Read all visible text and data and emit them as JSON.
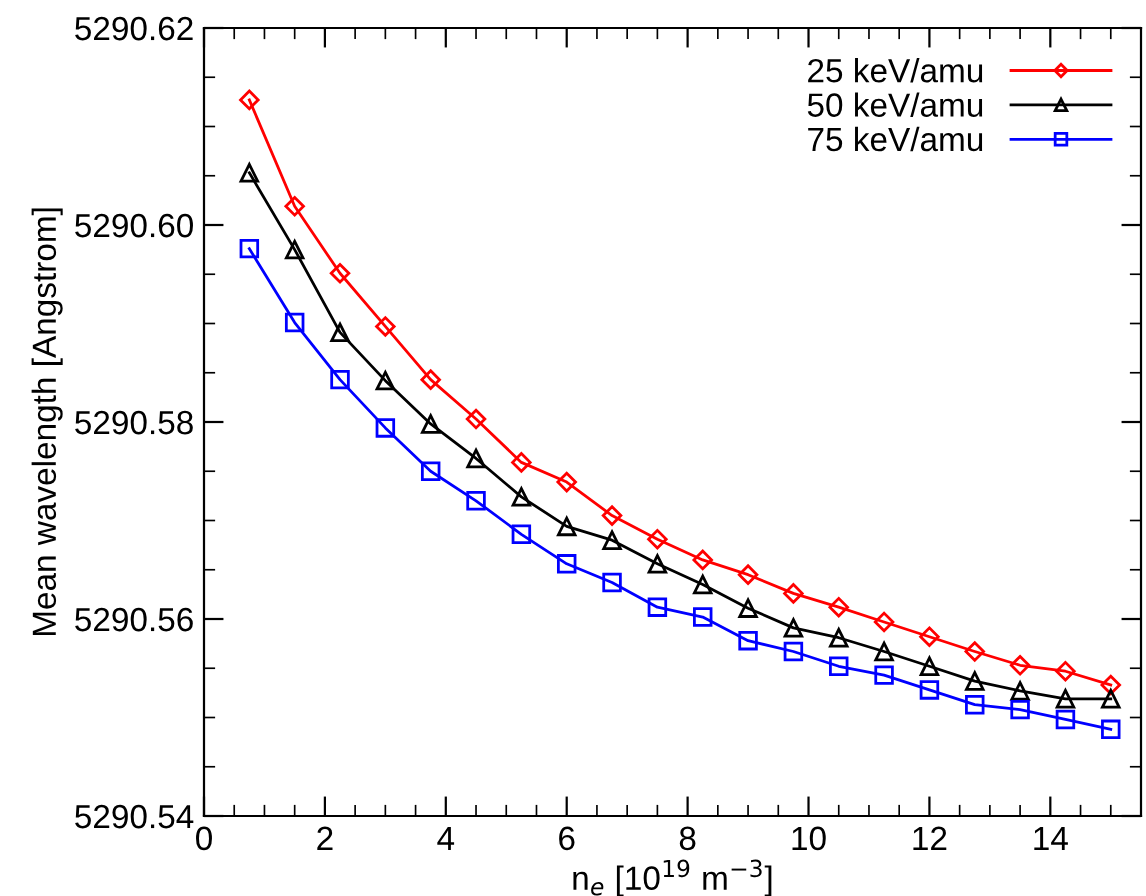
{
  "chart_data": {
    "type": "line",
    "xlabel": "n$_{e}$ [10$^{19}$ m$^{−3}$]",
    "ylabel": "Mean wavelength [Angstrom]",
    "x": [
      0.75,
      1.5,
      2.25,
      3,
      3.75,
      4.5,
      5.25,
      6,
      6.75,
      7.5,
      8.25,
      9,
      9.75,
      10.5,
      11.25,
      12,
      12.75,
      13.5,
      14.25,
      15
    ],
    "series": [
      {
        "name": "25 keV/amu",
        "color": "#ff0000",
        "marker": "diamond",
        "values": [
          5290.6127,
          5290.6019,
          5290.5951,
          5290.5897,
          5290.5843,
          5290.5803,
          5290.5759,
          5290.5739,
          5290.5705,
          5290.5681,
          5290.566,
          5290.5645,
          5290.5626,
          5290.5612,
          5290.5597,
          5290.5582,
          5290.5567,
          5290.5553,
          5290.5547,
          5290.5533
        ]
      },
      {
        "name": "50 keV/amu",
        "color": "#000000",
        "marker": "triangle",
        "values": [
          5290.6053,
          5290.5975,
          5290.5891,
          5290.5842,
          5290.5798,
          5290.5763,
          5290.5724,
          5290.5694,
          5290.568,
          5290.5656,
          5290.5635,
          5290.5611,
          5290.5591,
          5290.5581,
          5290.5567,
          5290.5552,
          5290.5537,
          5290.5527,
          5290.5519,
          5290.5519
        ]
      },
      {
        "name": "75 keV/amu",
        "color": "#0000ff",
        "marker": "square",
        "values": [
          5290.5976,
          5290.5901,
          5290.5843,
          5290.5794,
          5290.575,
          5290.572,
          5290.5686,
          5290.5656,
          5290.5637,
          5290.5612,
          5290.5602,
          5290.5578,
          5290.5567,
          5290.5552,
          5290.5543,
          5290.5528,
          5290.5513,
          5290.5508,
          5290.5498,
          5290.5488
        ]
      }
    ],
    "xlim": [
      0,
      15.5
    ],
    "xticks": [
      0,
      2,
      4,
      6,
      8,
      10,
      12,
      14
    ],
    "ylim": [
      5290.54,
      5290.62
    ],
    "yticks": [
      {
        "value": 5290.54,
        "label": "5290.54"
      },
      {
        "value": 5290.56,
        "label": "5290.56"
      },
      {
        "value": 5290.58,
        "label": "5290.58"
      },
      {
        "value": 5290.6,
        "label": "5290.60"
      },
      {
        "value": 5290.62,
        "label": "5290.62"
      }
    ],
    "grid": false,
    "legend": "top right",
    "line_style": "solid"
  }
}
